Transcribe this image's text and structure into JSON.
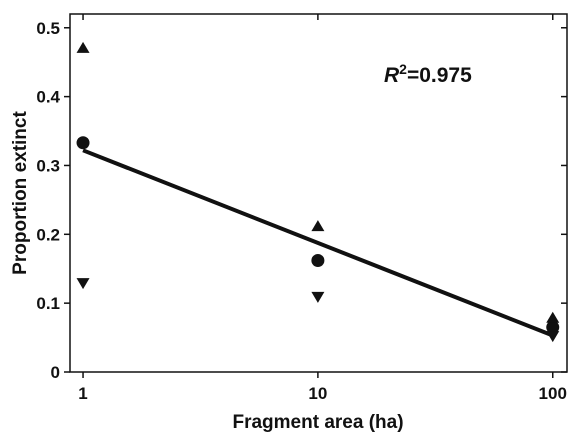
{
  "chart_data": {
    "type": "scatter",
    "xlabel": "Fragment area (ha)",
    "ylabel": "Proportion extinct",
    "x_scale": "log",
    "xlim": [
      0.88,
      115
    ],
    "ylim": [
      0,
      0.52
    ],
    "xticks": [
      1,
      10,
      100
    ],
    "xtick_labels": [
      "1",
      "10",
      "100"
    ],
    "yticks": [
      0,
      0.1,
      0.2,
      0.3,
      0.4,
      0.5
    ],
    "ytick_labels": [
      "0",
      "0.1",
      "0.2",
      "0.3",
      "0.4",
      "0.5"
    ],
    "grid": false,
    "series": [
      {
        "marker": "circle",
        "points": [
          {
            "x": 1,
            "y": 0.333
          },
          {
            "x": 10,
            "y": 0.162
          },
          {
            "x": 100,
            "y": 0.065
          }
        ]
      },
      {
        "marker": "triangle-up",
        "points": [
          {
            "x": 1,
            "y": 0.47
          },
          {
            "x": 10,
            "y": 0.211
          },
          {
            "x": 100,
            "y": 0.078
          }
        ]
      },
      {
        "marker": "triangle-down",
        "points": [
          {
            "x": 1,
            "y": 0.13
          },
          {
            "x": 10,
            "y": 0.11
          },
          {
            "x": 100,
            "y": 0.053
          }
        ]
      }
    ],
    "fit_line": {
      "points": [
        {
          "x": 1,
          "y": 0.322
        },
        {
          "x": 100,
          "y": 0.053
        }
      ]
    },
    "annotation": {
      "label": "R",
      "superscript": "2",
      "value": "=0.975"
    }
  }
}
